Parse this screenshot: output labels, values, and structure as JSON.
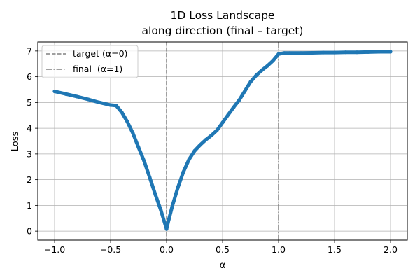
{
  "chart_data": {
    "type": "line",
    "title_line1": "1D Loss Landscape",
    "title_line2": "along direction (final – target)",
    "xlabel": "α",
    "ylabel": "Loss",
    "xlim": [
      -1.15,
      2.15
    ],
    "ylim": [
      -0.35,
      7.35
    ],
    "x_ticks": [
      -1.0,
      -0.5,
      0.0,
      0.5,
      1.0,
      1.5,
      2.0
    ],
    "x_tick_labels": [
      "−1.0",
      "−0.5",
      "0.0",
      "0.5",
      "1.0",
      "1.5",
      "2.0"
    ],
    "y_ticks": [
      0,
      1,
      2,
      3,
      4,
      5,
      6,
      7
    ],
    "y_tick_labels": [
      "0",
      "1",
      "2",
      "3",
      "4",
      "5",
      "6",
      "7"
    ],
    "grid": true,
    "legend_position": "top-left",
    "series": [
      {
        "color": "#1f77b4",
        "x": [
          -1.0,
          -0.9,
          -0.8,
          -0.7,
          -0.6,
          -0.5,
          -0.45,
          -0.4,
          -0.35,
          -0.3,
          -0.25,
          -0.2,
          -0.15,
          -0.1,
          -0.05,
          0.0,
          0.02,
          0.05,
          0.1,
          0.15,
          0.2,
          0.25,
          0.3,
          0.35,
          0.4,
          0.45,
          0.5,
          0.55,
          0.6,
          0.65,
          0.7,
          0.75,
          0.8,
          0.85,
          0.9,
          0.95,
          1.0,
          1.05,
          1.1,
          1.2,
          1.3,
          1.4,
          1.5,
          1.6,
          1.7,
          1.8,
          1.9,
          2.0
        ],
        "y": [
          5.43,
          5.33,
          5.23,
          5.12,
          5.0,
          4.9,
          4.88,
          4.62,
          4.25,
          3.8,
          3.25,
          2.72,
          2.08,
          1.42,
          0.8,
          0.08,
          0.45,
          0.95,
          1.68,
          2.3,
          2.78,
          3.12,
          3.35,
          3.55,
          3.72,
          3.92,
          4.22,
          4.52,
          4.82,
          5.1,
          5.45,
          5.8,
          6.05,
          6.25,
          6.42,
          6.62,
          6.88,
          6.92,
          6.92,
          6.92,
          6.93,
          6.94,
          6.94,
          6.95,
          6.95,
          6.96,
          6.97,
          6.97
        ]
      }
    ],
    "vlines": [
      {
        "x": 0.0,
        "style": "dashed",
        "color": "#808080",
        "label": "target (α=0)"
      },
      {
        "x": 1.0,
        "style": "dashdot",
        "color": "#808080",
        "label": "final  (α=1)"
      }
    ]
  }
}
